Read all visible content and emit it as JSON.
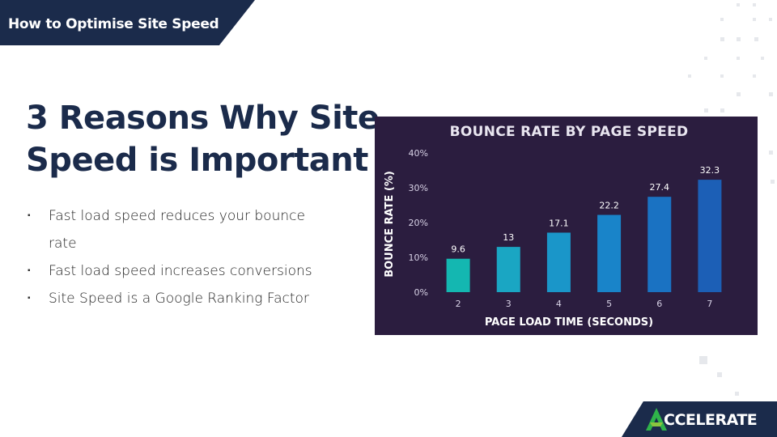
{
  "header": {
    "title": "How to Optimise Site Speed"
  },
  "slide": {
    "title_line1": "3 Reasons Why Site",
    "title_line2": "Speed is Important",
    "bullet_marker": "▪",
    "bullets": [
      {
        "line1": "Fast load speed reduces your bounce",
        "line2": "rate"
      },
      {
        "line1": "Fast load speed increases conversions"
      },
      {
        "line1": "Site Speed is a Google Ranking Factor"
      }
    ]
  },
  "chart_data": {
    "type": "bar",
    "title": "BOUNCE RATE BY PAGE SPEED",
    "xlabel": "PAGE LOAD TIME (SECONDS)",
    "ylabel": "BOUNCE RATE (%)",
    "categories": [
      "2",
      "3",
      "4",
      "5",
      "6",
      "7"
    ],
    "values": [
      9.6,
      13,
      17.1,
      22.2,
      27.4,
      32.3
    ],
    "value_labels": [
      "9.6",
      "13",
      "17.1",
      "22.2",
      "27.4",
      "32.3"
    ],
    "yticks": [
      "0%",
      "10%",
      "20%",
      "30%",
      "40%"
    ],
    "ylim": [
      0,
      40
    ],
    "grid": false,
    "colors": [
      "#14b7b1",
      "#1aa6c3",
      "#1a96c9",
      "#1984c9",
      "#1a72c2",
      "#1c5fb6"
    ]
  },
  "footer": {
    "logo_text": "CCELERATE",
    "logo_icon": "accelerate-a-icon",
    "brand_color": "#1b2b4b"
  }
}
